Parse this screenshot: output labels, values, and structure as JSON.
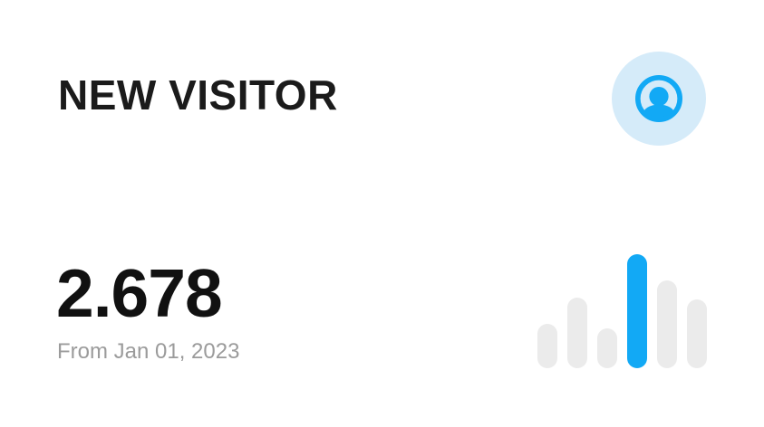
{
  "card": {
    "title": "NEW VISITOR",
    "value": "2.678",
    "subtitle": "From Jan 01, 2023",
    "icon": "user-circle-icon"
  },
  "colors": {
    "accent_blue": "#12A9F5",
    "icon_badge_bg": "#D5EBF9",
    "bar_gray": "#EBEBEB",
    "title_text": "#1B1B1B",
    "value_text": "#111111",
    "subtitle_text": "#9B9B9B",
    "card_bg": "#FFFFFF"
  },
  "chart_data": {
    "type": "bar",
    "values": [
      49,
      78,
      44,
      126,
      97,
      76
    ],
    "value_unit": "px",
    "ylim": [
      0,
      126
    ],
    "highlight_index": 3,
    "bar_colors": [
      "#EBEBEB",
      "#EBEBEB",
      "#EBEBEB",
      "#12A9F5",
      "#EBEBEB",
      "#EBEBEB"
    ],
    "legend": "none",
    "axes_visible": false
  }
}
